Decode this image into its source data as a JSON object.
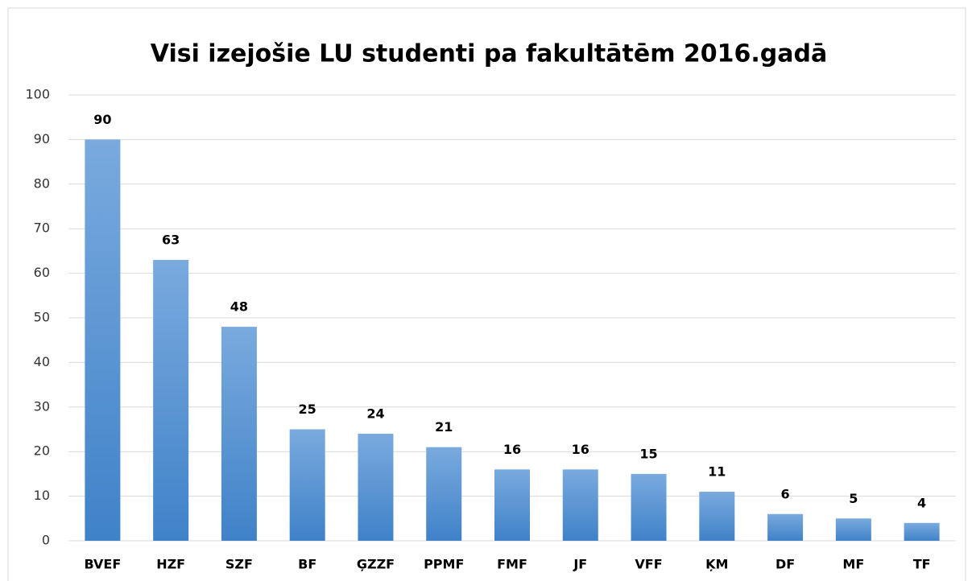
{
  "chart_data": {
    "type": "bar",
    "title": "Visi izejošie LU studenti pa fakultātēm 2016.gadā",
    "categories": [
      "BVEF",
      "HZF",
      "SZF",
      "BF",
      "ĢZZF",
      "PPMF",
      "FMF",
      "JF",
      "VFF",
      "ĶM",
      "DF",
      "MF",
      "TF"
    ],
    "values": [
      90,
      63,
      48,
      25,
      24,
      21,
      16,
      16,
      15,
      11,
      6,
      5,
      4
    ],
    "color": "#5b9bd5",
    "ylim": [
      0,
      100
    ],
    "yticks": [
      0,
      10,
      20,
      30,
      40,
      50,
      60,
      70,
      80,
      90,
      100
    ],
    "grid": true
  }
}
